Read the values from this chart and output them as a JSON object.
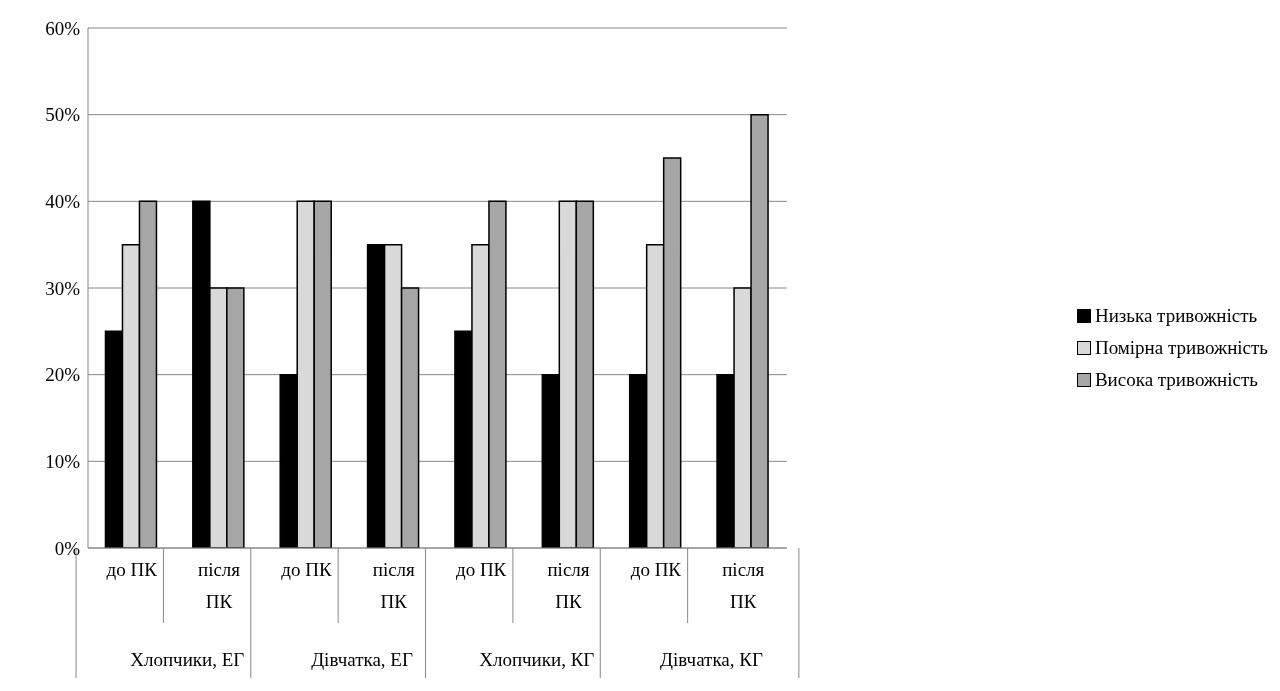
{
  "chart_data": {
    "type": "bar",
    "categories": [
      "до ПК",
      "після ПК",
      "до ПК",
      "після ПК",
      "до ПК",
      "після ПК",
      "до ПК",
      "після ПК"
    ],
    "series": [
      {
        "name": "Низька тривожність",
        "color": "#000000",
        "values": [
          25,
          40,
          20,
          35,
          25,
          20,
          20,
          20
        ]
      },
      {
        "name": "Помірна тривожність",
        "color": "#d9d9d9",
        "values": [
          35,
          30,
          40,
          35,
          35,
          40,
          35,
          30
        ]
      },
      {
        "name": "Висока тривожність",
        "color": "#a6a6a6",
        "values": [
          40,
          30,
          40,
          30,
          40,
          40,
          45,
          50
        ]
      }
    ],
    "ylim": [
      0,
      60
    ],
    "yticks": [
      {
        "value": 0,
        "label": "0%"
      },
      {
        "value": 10,
        "label": "10%"
      },
      {
        "value": 20,
        "label": "20%"
      },
      {
        "value": 30,
        "label": "30%"
      },
      {
        "value": 40,
        "label": "40%"
      },
      {
        "value": 50,
        "label": "50%"
      },
      {
        "value": 60,
        "label": "60%"
      }
    ],
    "annotations": [
      "Хлопчики, ЕГ",
      "Дівчатка, ЕГ",
      "Хлопчики, КГ",
      "Дівчатка, КГ"
    ],
    "grid": "y",
    "legend": "right"
  }
}
